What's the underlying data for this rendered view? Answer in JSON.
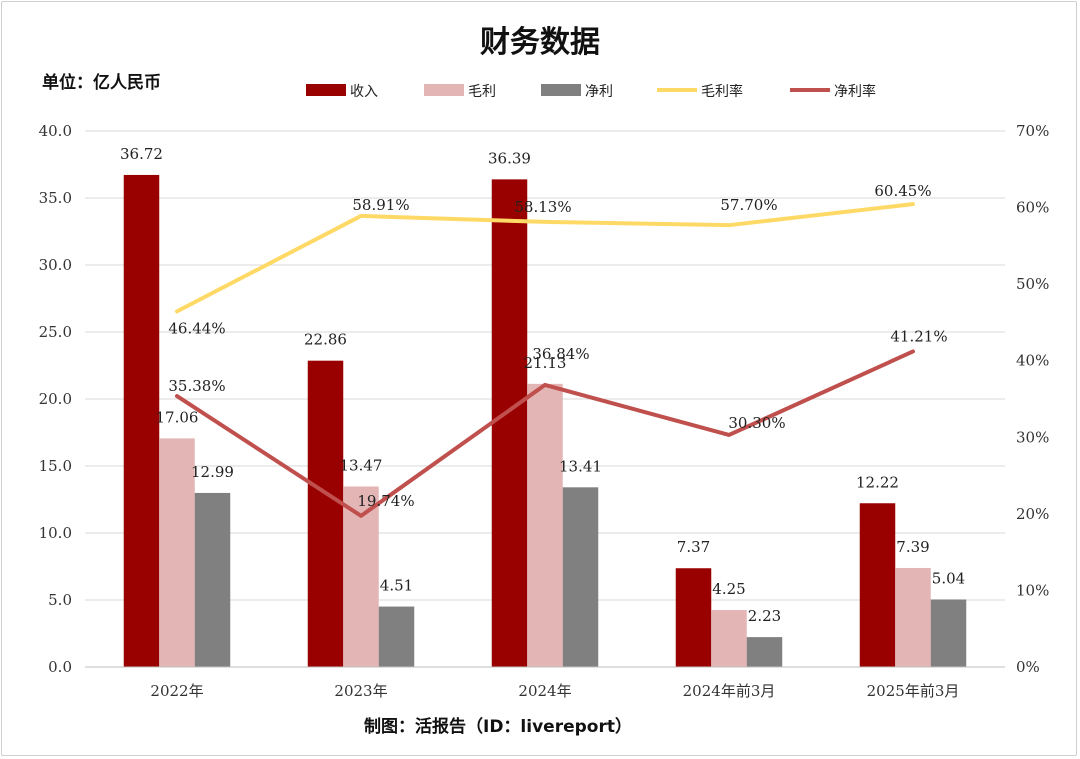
{
  "chart_data": {
    "type": "bar",
    "title": "财务数据",
    "unit_label": "单位：亿人民币",
    "footer": "制图：活报告（ID：livereport）",
    "categories": [
      "2022年",
      "2023年",
      "2024年",
      "2024年前3月",
      "2025年前3月"
    ],
    "bar_series": [
      {
        "name": "收入",
        "color": "#990000",
        "values": [
          36.72,
          22.86,
          36.39,
          7.37,
          12.22
        ],
        "labels": [
          "36.72",
          "22.86",
          "36.39",
          "7.37",
          "12.22"
        ]
      },
      {
        "name": "毛利",
        "color": "#e3b5b5",
        "values": [
          17.06,
          13.47,
          21.13,
          4.25,
          7.39
        ],
        "labels": [
          "17.06",
          "13.47",
          "21.13",
          "4.25",
          "7.39"
        ]
      },
      {
        "name": "净利",
        "color": "#808080",
        "values": [
          12.99,
          4.51,
          13.41,
          2.23,
          5.04
        ],
        "labels": [
          "12.99",
          "4.51",
          "13.41",
          "2.23",
          "5.04"
        ]
      }
    ],
    "line_series": [
      {
        "name": "毛利率",
        "color": "#ffd966",
        "values": [
          46.44,
          58.91,
          58.13,
          57.7,
          60.45
        ],
        "labels": [
          "46.44%",
          "58.91%",
          "58.13%",
          "57.70%",
          "60.45%"
        ]
      },
      {
        "name": "净利率",
        "color": "#c0504d",
        "values": [
          35.38,
          19.74,
          36.84,
          30.3,
          41.21
        ],
        "labels": [
          "35.38%",
          "19.74%",
          "36.84%",
          "30.30%",
          "41.21%"
        ]
      }
    ],
    "y_left": {
      "min": 0,
      "max": 40,
      "ticks": [
        "0.0",
        "5.0",
        "10.0",
        "15.0",
        "20.0",
        "25.0",
        "30.0",
        "35.0",
        "40.0"
      ]
    },
    "y_right": {
      "min": 0,
      "max": 70,
      "ticks": [
        "0%",
        "10%",
        "20%",
        "30%",
        "40%",
        "50%",
        "60%",
        "70%"
      ]
    },
    "grid": true,
    "legend_position": "top"
  }
}
